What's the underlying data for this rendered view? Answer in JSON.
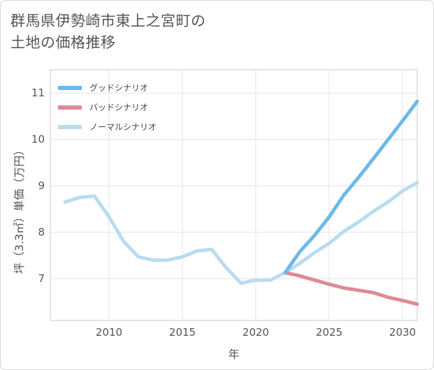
{
  "chart_data": {
    "type": "line",
    "title": "群馬県伊勢崎市東上之宮町の土地の価格推移",
    "title_lines": [
      "群馬県伊勢崎市東上之宮町の",
      "土地の価格推移"
    ],
    "xlabel": "年",
    "ylabel": "坪（3.3㎡）単価（万円）",
    "xlim": [
      2006,
      2031
    ],
    "ylim": [
      6.1,
      11.5
    ],
    "xticks": [
      2010,
      2015,
      2020,
      2025,
      2030
    ],
    "yticks": [
      7,
      8,
      9,
      10,
      11
    ],
    "grid": true,
    "legend_position": "top-left",
    "series": [
      {
        "name": "グッドシナリオ",
        "color": "#6cb9ea",
        "x": [
          2022,
          2023,
          2024,
          2025,
          2026,
          2027,
          2028,
          2029,
          2030,
          2031
        ],
        "values": [
          7.13,
          7.58,
          7.93,
          8.33,
          8.8,
          9.18,
          9.58,
          9.99,
          10.4,
          10.82
        ]
      },
      {
        "name": "バッドシナリオ",
        "color": "#de8a94",
        "x": [
          2022,
          2023,
          2024,
          2025,
          2026,
          2027,
          2028,
          2029,
          2030,
          2031
        ],
        "values": [
          7.13,
          7.06,
          6.97,
          6.88,
          6.8,
          6.75,
          6.7,
          6.6,
          6.53,
          6.45
        ]
      },
      {
        "name": "ノーマルシナリオ",
        "color": "#b9dcee",
        "x": [
          2007,
          2008,
          2009,
          2010,
          2011,
          2012,
          2013,
          2014,
          2015,
          2016,
          2017,
          2018,
          2019,
          2020,
          2021,
          2022,
          2023,
          2024,
          2025,
          2026,
          2027,
          2028,
          2029,
          2030,
          2031
        ],
        "values": [
          8.65,
          8.75,
          8.78,
          8.33,
          7.8,
          7.47,
          7.4,
          7.4,
          7.47,
          7.6,
          7.63,
          7.23,
          6.9,
          6.97,
          6.97,
          7.13,
          7.33,
          7.56,
          7.76,
          8.02,
          8.22,
          8.45,
          8.65,
          8.89,
          9.07
        ]
      }
    ]
  }
}
